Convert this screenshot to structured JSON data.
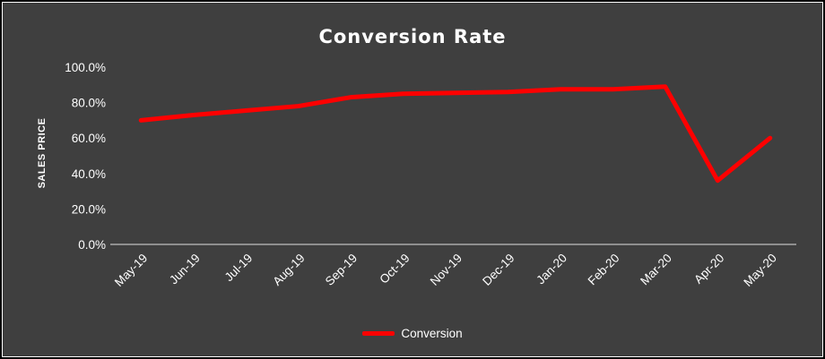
{
  "chart_data": {
    "type": "line",
    "title": "Conversion Rate",
    "xlabel": "",
    "ylabel": "SALES PRICE",
    "categories": [
      "May-19",
      "Jun-19",
      "Jul-19",
      "Aug-19",
      "Sep-19",
      "Oct-19",
      "Nov-19",
      "Dec-19",
      "Jan-20",
      "Feb-20",
      "Mar-20",
      "Apr-20",
      "May-20"
    ],
    "series": [
      {
        "name": "Conversion",
        "color": "#ff0000",
        "values": [
          70,
          73,
          75.5,
          78,
          83,
          85,
          85.5,
          86,
          87.5,
          87.5,
          89,
          36,
          60
        ]
      }
    ],
    "ylim": [
      0,
      100
    ],
    "ytick_values": [
      0,
      20,
      40,
      60,
      80,
      100
    ],
    "ytick_labels": [
      "0.0%",
      "20.0%",
      "40.0%",
      "60.0%",
      "80.0%",
      "100.0%"
    ],
    "grid": "off",
    "legend_position": "bottom",
    "colors": {
      "background": "#3f3f3f",
      "text": "#ffffff",
      "axis_line": "#bfbfbf",
      "series": "#ff0000"
    }
  }
}
